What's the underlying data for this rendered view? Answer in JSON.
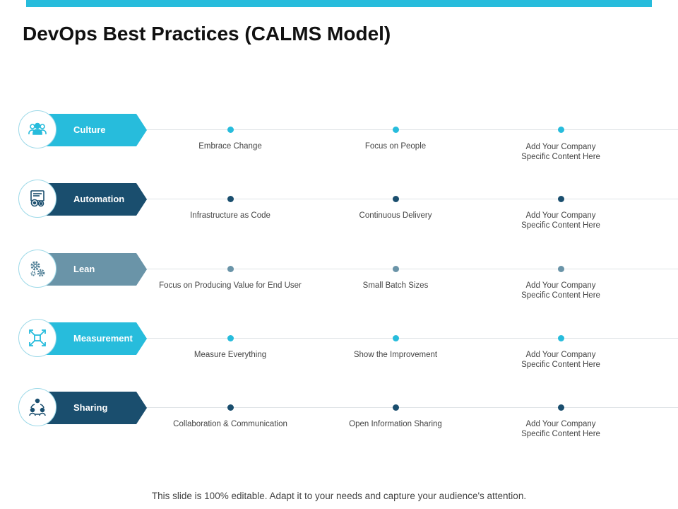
{
  "title": "DevOps Best Practices (CALMS Model)",
  "colors": {
    "top_bar": "#27bcdc",
    "culture": "#27bcdc",
    "automation": "#1a4e6e",
    "lean": "#6a94a8",
    "measurement": "#27bcdc",
    "sharing": "#1a4e6e"
  },
  "rows": [
    {
      "label": "Culture",
      "icon": "people-group-icon",
      "items": [
        {
          "line1": "Embrace Change",
          "line2": ""
        },
        {
          "line1": "Focus on People",
          "line2": ""
        },
        {
          "line1": "Add Your Company",
          "line2": "Specific Content Here"
        }
      ]
    },
    {
      "label": "Automation",
      "icon": "automation-gears-icon",
      "items": [
        {
          "line1": "Infrastructure as Code",
          "line2": ""
        },
        {
          "line1": "Continuous Delivery",
          "line2": ""
        },
        {
          "line1": "Add Your Company",
          "line2": "Specific Content Here"
        }
      ]
    },
    {
      "label": "Lean",
      "icon": "gears-icon",
      "items": [
        {
          "line1": "Focus on Producing Value for End User",
          "line2": ""
        },
        {
          "line1": "Small Batch Sizes",
          "line2": ""
        },
        {
          "line1": "Add Your Company",
          "line2": "Specific Content Here"
        }
      ]
    },
    {
      "label": "Measurement",
      "icon": "expand-arrows-icon",
      "items": [
        {
          "line1": "Measure Everything",
          "line2": ""
        },
        {
          "line1": "Show the Improvement",
          "line2": ""
        },
        {
          "line1": "Add Your Company",
          "line2": "Specific Content Here"
        }
      ]
    },
    {
      "label": "Sharing",
      "icon": "people-sharing-icon",
      "items": [
        {
          "line1": "Collaboration & Communication",
          "line2": ""
        },
        {
          "line1": "Open Information Sharing",
          "line2": ""
        },
        {
          "line1": "Add Your Company",
          "line2": "Specific Content Here"
        }
      ]
    }
  ],
  "footer": "This slide is 100% editable. Adapt it to your needs and capture your audience's attention."
}
